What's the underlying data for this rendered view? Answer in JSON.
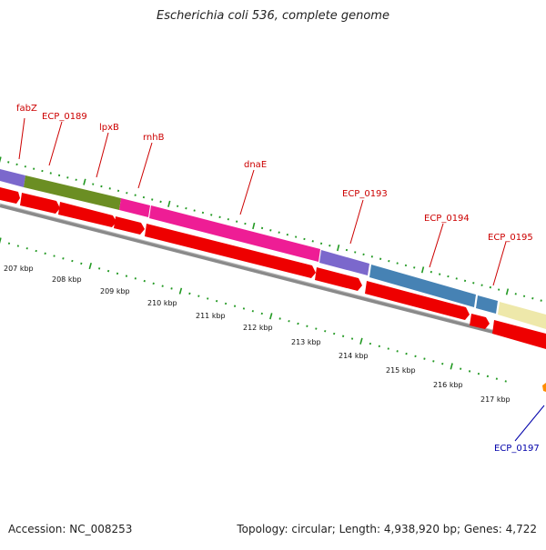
{
  "title": "Escherichia coli 536, complete genome",
  "accession": "Accession: NC_008253",
  "summary": "Topology: circular; Length: 4,938,920 bp; Genes: 4,722",
  "colors": {
    "cds_forward": "#ee0000",
    "tick": "#229922",
    "backbone": "#808080",
    "label_red": "#cc0000",
    "label_blue": "#0000aa",
    "gene_purple": "#7b68cc",
    "gene_olive": "#6b8e23",
    "gene_pink": "#ee1d95",
    "gene_steelblue": "#4682b4",
    "gene_khaki": "#eee8aa",
    "gene_orange": "#ff8c00"
  },
  "genes": [
    {
      "name": "fabZ",
      "color": "purple"
    },
    {
      "name": "ECP_0189",
      "color": "olive"
    },
    {
      "name": "lpxB",
      "color": "olive"
    },
    {
      "name": "rnhB",
      "color": "pink"
    },
    {
      "name": "dnaE",
      "color": "pink"
    },
    {
      "name": "ECP_0193",
      "color": "purple"
    },
    {
      "name": "ECP_0194",
      "color": "steelblue"
    },
    {
      "name": "ECP_0195",
      "color": "steelblue"
    },
    {
      "name": "ECP_0197",
      "color": "orange"
    }
  ],
  "kbp_labels": [
    "207 kbp",
    "208 kbp",
    "209 kbp",
    "210 kbp",
    "211 kbp",
    "212 kbp",
    "213 kbp",
    "214 kbp",
    "215 kbp",
    "216 kbp",
    "217 kbp"
  ]
}
